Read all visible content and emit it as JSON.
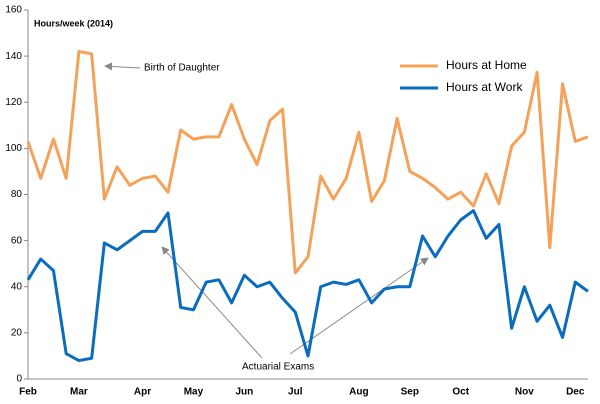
{
  "chart_data": {
    "type": "line",
    "y_axis_label": "Hours/week (2014)",
    "categories": [
      "Feb",
      null,
      null,
      null,
      "Mar",
      null,
      null,
      null,
      null,
      "Apr",
      null,
      null,
      null,
      "May",
      null,
      null,
      null,
      "Jun",
      null,
      null,
      null,
      "Jul",
      null,
      null,
      null,
      null,
      "Aug",
      null,
      null,
      null,
      "Sep",
      null,
      null,
      null,
      "Oct",
      null,
      null,
      null,
      null,
      "Nov",
      null,
      null,
      null,
      "Dec",
      null
    ],
    "series": [
      {
        "name": "Hours at Home",
        "color": "#f4a259",
        "values": [
          103,
          87,
          104,
          87,
          142,
          141,
          78,
          92,
          84,
          87,
          88,
          81,
          108,
          104,
          105,
          105,
          119,
          104,
          93,
          112,
          117,
          46,
          53,
          88,
          78,
          87,
          107,
          77,
          86,
          113,
          90,
          87,
          83,
          78,
          81,
          75,
          89,
          76,
          101,
          107,
          133,
          57,
          128,
          103,
          105
        ]
      },
      {
        "name": "Hours at Work",
        "color": "#0a6cbf",
        "values": [
          43,
          52,
          47,
          11,
          8,
          9,
          59,
          56,
          60,
          64,
          64,
          72,
          31,
          30,
          42,
          43,
          33,
          45,
          40,
          42,
          35,
          29,
          10,
          40,
          42,
          41,
          43,
          33,
          39,
          40,
          40,
          62,
          53,
          62,
          69,
          73,
          61,
          67,
          22,
          40,
          25,
          32,
          18,
          42,
          38
        ]
      }
    ],
    "ylim": [
      0,
      160
    ],
    "yticks": [
      0,
      20,
      40,
      60,
      80,
      100,
      120,
      140,
      160
    ],
    "grid": false,
    "legend": "upper right",
    "annotations": [
      {
        "text": "Birth of Daughter"
      },
      {
        "text": "Actuarial Exams"
      }
    ]
  }
}
